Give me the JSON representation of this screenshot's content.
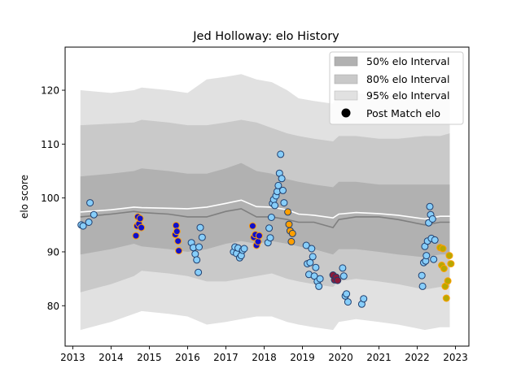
{
  "chart_data": {
    "type": "scatter",
    "title": "Jed Holloway: elo History",
    "xlabel": "",
    "ylabel": "elo score",
    "xlim": [
      2012.8,
      2023.35
    ],
    "ylim": [
      72.5,
      128
    ],
    "x_ticks": [
      2013,
      2014,
      2015,
      2016,
      2017,
      2018,
      2019,
      2020,
      2021,
      2022,
      2023
    ],
    "y_ticks": [
      80,
      90,
      100,
      110,
      120
    ],
    "grid": false,
    "legend_position": "top-right",
    "colors": {
      "band95": "#e1e1e1",
      "band80": "#c9c9c9",
      "band50": "#b1b1b1",
      "median": "#7f7f7f",
      "mean": "#ffffff",
      "point_fill_light": "#87cefa",
      "point_fill_dark": "#1010cc",
      "point_fill_gold": "#ff9f00",
      "point_fill_red": "#8b1a3a",
      "point_fill_olive": "#b8a800",
      "point_edge": "#1f3f6f",
      "point_edge_orange": "#ff9f00"
    },
    "legend": [
      {
        "label": "50% elo Interval",
        "kind": "band50"
      },
      {
        "label": "80% elo Interval",
        "kind": "band80"
      },
      {
        "label": "95% elo Interval",
        "kind": "band95"
      },
      {
        "label": "Post Match elo",
        "kind": "marker"
      }
    ],
    "intervals": {
      "x": [
        2013.2,
        2014.0,
        2014.6,
        2014.8,
        2015.5,
        2016.0,
        2016.5,
        2017.0,
        2017.4,
        2017.8,
        2018.2,
        2018.6,
        2018.9,
        2019.3,
        2019.8,
        2019.95,
        2020.4,
        2021.0,
        2021.5,
        2022.2,
        2022.6,
        2022.85
      ],
      "lower95": [
        75.5,
        77.0,
        78.5,
        79.0,
        78.5,
        78.0,
        76.5,
        77.0,
        77.5,
        78.0,
        78.0,
        77.0,
        76.5,
        76.0,
        75.5,
        77.0,
        77.5,
        77.0,
        76.5,
        75.5,
        76.0,
        76.0
      ],
      "lower80": [
        82.5,
        84.0,
        85.5,
        86.5,
        86.0,
        85.5,
        84.5,
        84.5,
        85.0,
        85.5,
        86.0,
        85.0,
        84.5,
        84.0,
        83.5,
        84.5,
        85.0,
        84.5,
        84.0,
        83.0,
        83.5,
        83.5
      ],
      "lower50": [
        89.5,
        90.5,
        91.5,
        91.0,
        90.5,
        90.0,
        90.5,
        91.5,
        92.0,
        91.5,
        92.0,
        91.5,
        91.0,
        90.5,
        89.5,
        90.5,
        90.5,
        90.0,
        89.5,
        89.0,
        89.5,
        89.5
      ],
      "median": [
        96.5,
        97.0,
        97.5,
        97.3,
        97.0,
        96.5,
        96.5,
        97.5,
        98.0,
        96.5,
        96.5,
        96.0,
        95.5,
        95.5,
        94.5,
        96.0,
        96.5,
        96.5,
        96.0,
        95.0,
        95.5,
        95.5
      ],
      "mean": [
        97.4,
        97.8,
        98.3,
        98.2,
        98.1,
        98.0,
        98.3,
        99.0,
        99.6,
        98.4,
        98.3,
        97.8,
        97.0,
        96.8,
        96.3,
        97.0,
        97.3,
        97.1,
        96.8,
        96.1,
        96.6,
        96.6
      ],
      "upper50": [
        104.0,
        104.5,
        105.0,
        105.5,
        105.0,
        104.5,
        104.5,
        105.5,
        106.5,
        105.0,
        104.5,
        103.5,
        103.0,
        102.5,
        102.0,
        103.0,
        103.0,
        102.5,
        102.5,
        102.5,
        102.5,
        102.5
      ],
      "upper80": [
        113.5,
        113.8,
        114.0,
        114.5,
        114.0,
        113.5,
        113.5,
        114.0,
        114.5,
        114.0,
        113.0,
        112.0,
        111.5,
        111.0,
        110.5,
        111.5,
        111.5,
        111.0,
        111.0,
        111.5,
        111.5,
        112.0
      ],
      "upper95": [
        120.0,
        119.5,
        120.0,
        120.5,
        120.0,
        119.5,
        122.0,
        122.5,
        123.0,
        122.0,
        121.5,
        120.0,
        118.5,
        118.0,
        117.5,
        119.5,
        119.5,
        119.0,
        119.0,
        120.0,
        120.0,
        121.5
      ]
    },
    "points": [
      {
        "x": 2013.22,
        "y": 95.0,
        "c": "light"
      },
      {
        "x": 2013.27,
        "y": 94.8,
        "c": "light"
      },
      {
        "x": 2013.42,
        "y": 95.5,
        "c": "light"
      },
      {
        "x": 2013.45,
        "y": 99.1,
        "c": "light"
      },
      {
        "x": 2013.55,
        "y": 96.9,
        "c": "light"
      },
      {
        "x": 2014.65,
        "y": 93.0,
        "c": "dark"
      },
      {
        "x": 2014.68,
        "y": 94.8,
        "c": "dark"
      },
      {
        "x": 2014.7,
        "y": 96.5,
        "c": "dark"
      },
      {
        "x": 2014.73,
        "y": 95.2,
        "c": "dark"
      },
      {
        "x": 2014.76,
        "y": 96.2,
        "c": "dark"
      },
      {
        "x": 2014.79,
        "y": 94.5,
        "c": "dark"
      },
      {
        "x": 2015.68,
        "y": 93.2,
        "c": "dark"
      },
      {
        "x": 2015.7,
        "y": 94.9,
        "c": "dark"
      },
      {
        "x": 2015.72,
        "y": 93.8,
        "c": "dark"
      },
      {
        "x": 2015.75,
        "y": 92.0,
        "c": "dark"
      },
      {
        "x": 2015.77,
        "y": 90.2,
        "c": "dark"
      },
      {
        "x": 2016.1,
        "y": 91.7,
        "c": "light"
      },
      {
        "x": 2016.15,
        "y": 90.8,
        "c": "light"
      },
      {
        "x": 2016.2,
        "y": 89.6,
        "c": "light"
      },
      {
        "x": 2016.24,
        "y": 88.5,
        "c": "light"
      },
      {
        "x": 2016.28,
        "y": 86.2,
        "c": "light"
      },
      {
        "x": 2016.3,
        "y": 90.9,
        "c": "light"
      },
      {
        "x": 2016.33,
        "y": 94.5,
        "c": "light"
      },
      {
        "x": 2016.38,
        "y": 92.7,
        "c": "light"
      },
      {
        "x": 2017.2,
        "y": 90.0,
        "c": "light"
      },
      {
        "x": 2017.24,
        "y": 90.9,
        "c": "light"
      },
      {
        "x": 2017.28,
        "y": 89.7,
        "c": "light"
      },
      {
        "x": 2017.32,
        "y": 90.7,
        "c": "light"
      },
      {
        "x": 2017.36,
        "y": 88.9,
        "c": "light"
      },
      {
        "x": 2017.4,
        "y": 89.3,
        "c": "light"
      },
      {
        "x": 2017.44,
        "y": 90.3,
        "c": "light"
      },
      {
        "x": 2017.48,
        "y": 90.6,
        "c": "light"
      },
      {
        "x": 2017.7,
        "y": 94.8,
        "c": "dark"
      },
      {
        "x": 2017.73,
        "y": 92.7,
        "c": "dark"
      },
      {
        "x": 2017.77,
        "y": 93.2,
        "c": "dark"
      },
      {
        "x": 2017.8,
        "y": 91.2,
        "c": "dark"
      },
      {
        "x": 2017.84,
        "y": 91.9,
        "c": "dark"
      },
      {
        "x": 2017.87,
        "y": 93.0,
        "c": "dark"
      },
      {
        "x": 2018.1,
        "y": 91.7,
        "c": "light"
      },
      {
        "x": 2018.13,
        "y": 94.4,
        "c": "light"
      },
      {
        "x": 2018.16,
        "y": 92.6,
        "c": "light"
      },
      {
        "x": 2018.19,
        "y": 96.4,
        "c": "light"
      },
      {
        "x": 2018.22,
        "y": 99.0,
        "c": "light"
      },
      {
        "x": 2018.25,
        "y": 99.7,
        "c": "light"
      },
      {
        "x": 2018.28,
        "y": 98.6,
        "c": "light"
      },
      {
        "x": 2018.31,
        "y": 100.4,
        "c": "light"
      },
      {
        "x": 2018.34,
        "y": 101.2,
        "c": "light"
      },
      {
        "x": 2018.37,
        "y": 102.3,
        "c": "light"
      },
      {
        "x": 2018.4,
        "y": 104.6,
        "c": "light"
      },
      {
        "x": 2018.43,
        "y": 108.1,
        "c": "light"
      },
      {
        "x": 2018.46,
        "y": 103.6,
        "c": "light"
      },
      {
        "x": 2018.49,
        "y": 101.4,
        "c": "light"
      },
      {
        "x": 2018.52,
        "y": 99.1,
        "c": "light"
      },
      {
        "x": 2018.62,
        "y": 97.4,
        "c": "gold"
      },
      {
        "x": 2018.65,
        "y": 95.1,
        "c": "gold"
      },
      {
        "x": 2018.68,
        "y": 93.9,
        "c": "gold"
      },
      {
        "x": 2018.71,
        "y": 91.9,
        "c": "gold"
      },
      {
        "x": 2018.74,
        "y": 93.4,
        "c": "gold"
      },
      {
        "x": 2019.1,
        "y": 91.2,
        "c": "light"
      },
      {
        "x": 2019.13,
        "y": 87.8,
        "c": "light"
      },
      {
        "x": 2019.17,
        "y": 85.8,
        "c": "light"
      },
      {
        "x": 2019.2,
        "y": 88.0,
        "c": "light"
      },
      {
        "x": 2019.24,
        "y": 90.6,
        "c": "light"
      },
      {
        "x": 2019.27,
        "y": 89.1,
        "c": "light"
      },
      {
        "x": 2019.31,
        "y": 85.5,
        "c": "light"
      },
      {
        "x": 2019.35,
        "y": 87.1,
        "c": "light"
      },
      {
        "x": 2019.39,
        "y": 84.5,
        "c": "light"
      },
      {
        "x": 2019.43,
        "y": 83.6,
        "c": "light"
      },
      {
        "x": 2019.46,
        "y": 85.0,
        "c": "light"
      },
      {
        "x": 2019.8,
        "y": 85.7,
        "c": "red"
      },
      {
        "x": 2019.84,
        "y": 84.8,
        "c": "red"
      },
      {
        "x": 2019.88,
        "y": 85.3,
        "c": "red"
      },
      {
        "x": 2019.92,
        "y": 84.7,
        "c": "red"
      },
      {
        "x": 2020.05,
        "y": 87.0,
        "c": "light"
      },
      {
        "x": 2020.08,
        "y": 85.5,
        "c": "light"
      },
      {
        "x": 2020.12,
        "y": 81.8,
        "c": "light"
      },
      {
        "x": 2020.15,
        "y": 82.2,
        "c": "light"
      },
      {
        "x": 2020.19,
        "y": 80.7,
        "c": "light"
      },
      {
        "x": 2020.55,
        "y": 80.3,
        "c": "light"
      },
      {
        "x": 2020.6,
        "y": 81.3,
        "c": "light"
      },
      {
        "x": 2022.12,
        "y": 85.6,
        "c": "light"
      },
      {
        "x": 2022.14,
        "y": 83.6,
        "c": "light"
      },
      {
        "x": 2022.17,
        "y": 88.0,
        "c": "light"
      },
      {
        "x": 2022.2,
        "y": 91.0,
        "c": "light"
      },
      {
        "x": 2022.22,
        "y": 88.3,
        "c": "light"
      },
      {
        "x": 2022.24,
        "y": 89.3,
        "c": "light"
      },
      {
        "x": 2022.27,
        "y": 92.0,
        "c": "light"
      },
      {
        "x": 2022.3,
        "y": 95.4,
        "c": "light"
      },
      {
        "x": 2022.33,
        "y": 98.4,
        "c": "light"
      },
      {
        "x": 2022.35,
        "y": 96.9,
        "c": "light"
      },
      {
        "x": 2022.37,
        "y": 92.5,
        "c": "light"
      },
      {
        "x": 2022.4,
        "y": 96.1,
        "c": "light"
      },
      {
        "x": 2022.43,
        "y": 88.6,
        "c": "light"
      },
      {
        "x": 2022.46,
        "y": 92.2,
        "c": "light"
      },
      {
        "x": 2022.6,
        "y": 90.8,
        "c": "olive"
      },
      {
        "x": 2022.64,
        "y": 87.5,
        "c": "olive"
      },
      {
        "x": 2022.67,
        "y": 90.6,
        "c": "olive"
      },
      {
        "x": 2022.7,
        "y": 86.9,
        "c": "olive"
      },
      {
        "x": 2022.73,
        "y": 83.6,
        "c": "olive"
      },
      {
        "x": 2022.76,
        "y": 81.4,
        "c": "olive"
      },
      {
        "x": 2022.8,
        "y": 84.6,
        "c": "olive"
      },
      {
        "x": 2022.84,
        "y": 89.3,
        "c": "olive"
      },
      {
        "x": 2022.88,
        "y": 87.8,
        "c": "olive"
      }
    ]
  }
}
